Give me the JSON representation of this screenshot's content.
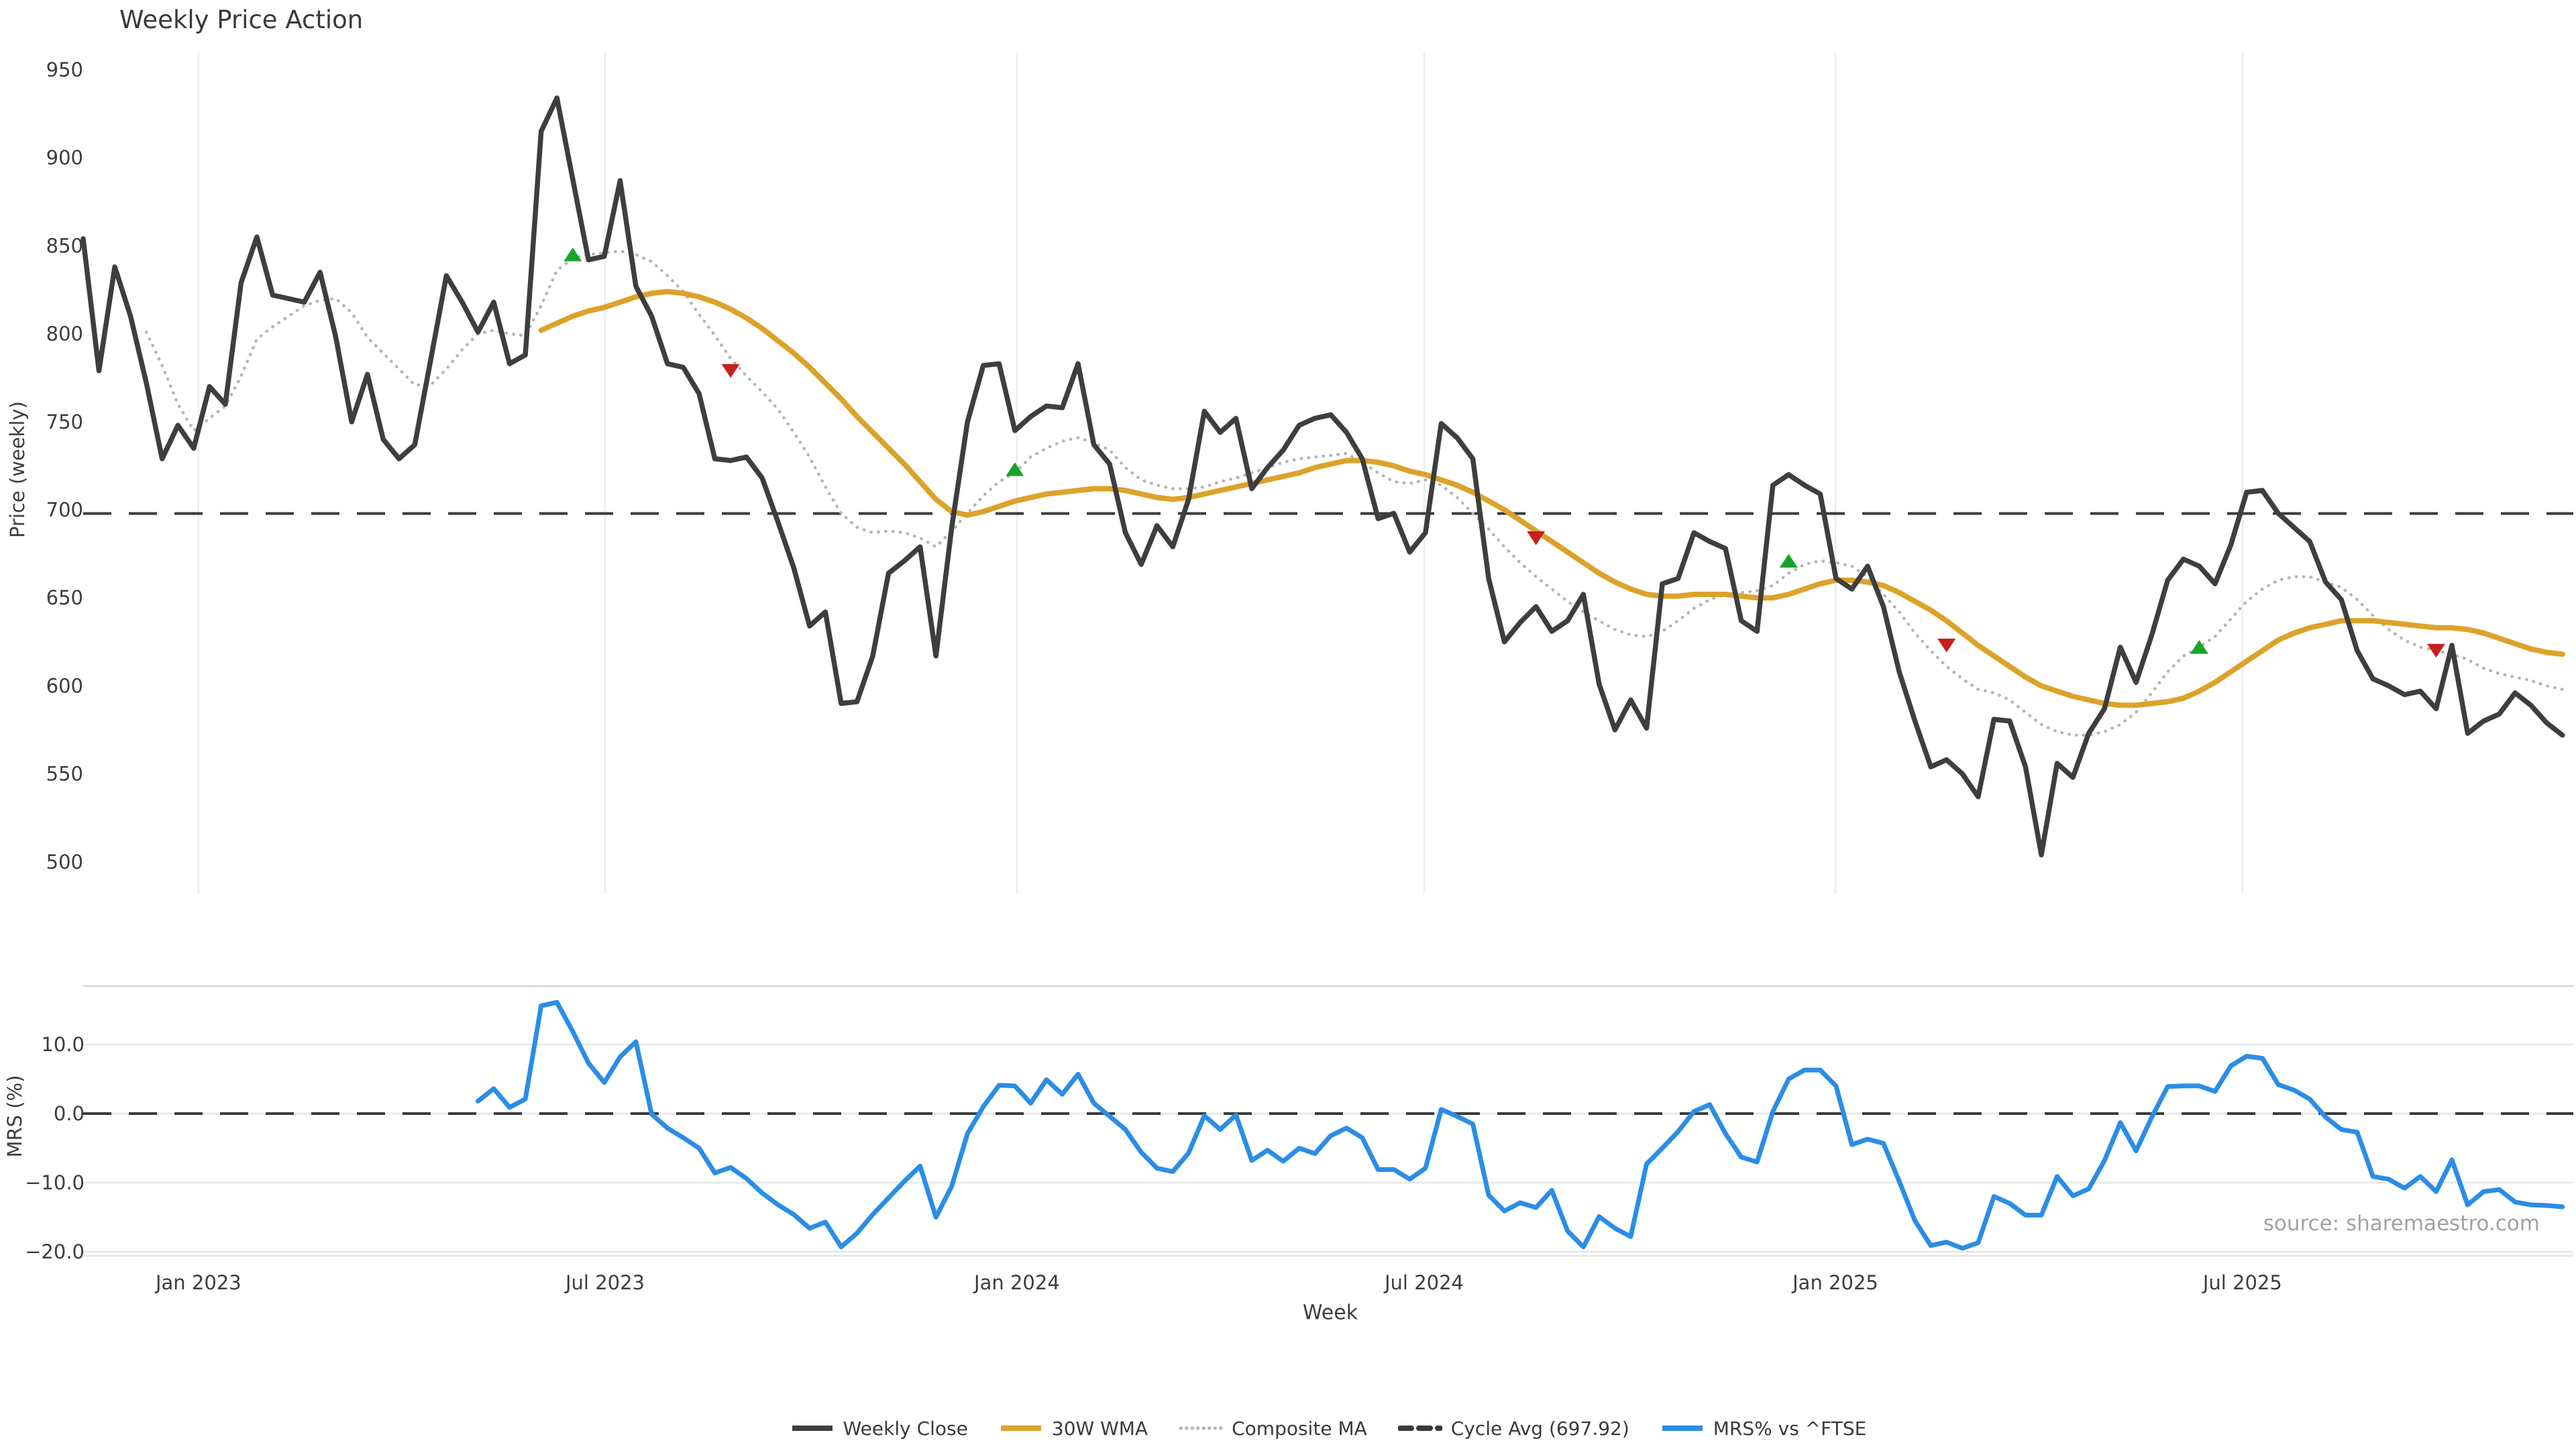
{
  "title": "Weekly Price Action",
  "source": "source: sharemaestro.com",
  "colors": {
    "weekly_close": "#3e3e3e",
    "wma": "#dca32a",
    "composite": "#b5b5b5",
    "cycle_avg": "#3a3a3a",
    "mrs": "#2b8de6",
    "buy_marker": "#17a42a",
    "sell_marker": "#c81e1e",
    "gridline": "#ededed",
    "mrs_gridline": "#e6e6e6",
    "tick_text": "#3d3d3d"
  },
  "chart_data": [
    {
      "type": "line",
      "id": "price",
      "title": "Weekly Price Action",
      "ylabel": "Price (weekly)",
      "ylim": [
        482,
        961
      ],
      "yticks": [
        500,
        550,
        600,
        650,
        700,
        750,
        800,
        850,
        900,
        950
      ],
      "x_axis": "weekly dates Nov 2022 - Nov 2025 (week index 0-157)",
      "x_ticks": [
        {
          "week": 7.3,
          "label": "Jan 2023"
        },
        {
          "week": 33.05,
          "label": "Jul 2023"
        },
        {
          "week": 59.13,
          "label": "Jan 2024"
        },
        {
          "week": 84.92,
          "label": "Jul 2024"
        },
        {
          "week": 110.96,
          "label": "Jan 2025"
        },
        {
          "week": 136.74,
          "label": "Jul 2025"
        }
      ],
      "cycle_avg": 697.92,
      "grid": "vertical-only",
      "series": [
        {
          "name": "Weekly Close",
          "style": "solid",
          "color": "#3e3e3e",
          "width": 7.5,
          "start_week": 0,
          "values": [
            854,
            779,
            838,
            810,
            772,
            729,
            748,
            735,
            770,
            760,
            829,
            855,
            822,
            820,
            818,
            835,
            798,
            750,
            777,
            740,
            729,
            737,
            785,
            833,
            818,
            801,
            818,
            783,
            788,
            915,
            934,
            888,
            842,
            844,
            887,
            827,
            810,
            783,
            781,
            766,
            729,
            728,
            730,
            718,
            693,
            667,
            634,
            642,
            590,
            591,
            617,
            664,
            671,
            679,
            617,
            690,
            750,
            782,
            783,
            745,
            753,
            759,
            758,
            783,
            737,
            726,
            687,
            669,
            691,
            679,
            706,
            756,
            744,
            752,
            712,
            724,
            734,
            748,
            752,
            754,
            744,
            729,
            695,
            698,
            676,
            687,
            749,
            741,
            729,
            661,
            625,
            636,
            645,
            631,
            637,
            652,
            601,
            575,
            592,
            576,
            658,
            661,
            687,
            682,
            678,
            637,
            631,
            714,
            720,
            714,
            709,
            661,
            655,
            668,
            645,
            608,
            580,
            554,
            558,
            550,
            537,
            581,
            580,
            554,
            504,
            556,
            548,
            573,
            587,
            622,
            602,
            629,
            660,
            672,
            668,
            658,
            680,
            710,
            711,
            698,
            690,
            682,
            659,
            649,
            620,
            604,
            600,
            595,
            597,
            587,
            623,
            573,
            580,
            584,
            596,
            589,
            579,
            572
          ]
        },
        {
          "name": "30W WMA",
          "style": "solid",
          "color": "#dca32a",
          "width": 8,
          "start_week": 29,
          "values": [
            802,
            806,
            810,
            813,
            815,
            818,
            821,
            823,
            824,
            823,
            821,
            818,
            814,
            809,
            803,
            796,
            789,
            781,
            772,
            763,
            753,
            744,
            735,
            726,
            716,
            706,
            699,
            697,
            699,
            702,
            705,
            707,
            709,
            710,
            711,
            712,
            712,
            711,
            709,
            707,
            706,
            707,
            709,
            711,
            713,
            715,
            717,
            719,
            721,
            724,
            726,
            728,
            728,
            727,
            725,
            722,
            720,
            717,
            714,
            710,
            705,
            700,
            694,
            688,
            682,
            676,
            670,
            664,
            659,
            655,
            652,
            651,
            651,
            652,
            652,
            652,
            651,
            650,
            650,
            652,
            655,
            658,
            660,
            660,
            659,
            657,
            653,
            648,
            643,
            637,
            630,
            623,
            617,
            611,
            605,
            600,
            597,
            594,
            592,
            590,
            589,
            589,
            590,
            591,
            593,
            597,
            602,
            608,
            614,
            620,
            626,
            630,
            633,
            635,
            637,
            637,
            637,
            636,
            635,
            634,
            633,
            633,
            632,
            630,
            627,
            624,
            621,
            619,
            618
          ]
        },
        {
          "name": "Composite MA",
          "style": "dotted",
          "color": "#b5b5b5",
          "width": 4.5,
          "start_week": 4,
          "values": [
            801,
            782,
            760,
            745,
            752,
            759,
            776,
            797,
            804,
            810,
            816,
            819,
            820,
            812,
            798,
            789,
            780,
            771,
            771,
            780,
            791,
            800,
            802,
            800,
            799,
            816,
            836,
            843,
            845,
            846,
            847,
            845,
            841,
            833,
            824,
            811,
            799,
            786,
            776,
            767,
            757,
            744,
            730,
            713,
            698,
            690,
            687,
            688,
            687,
            684,
            679,
            688,
            698,
            708,
            716,
            721,
            730,
            735,
            739,
            741,
            738,
            734,
            724,
            717,
            714,
            712,
            712,
            713,
            716,
            718,
            721,
            724,
            727,
            729,
            730,
            731,
            732,
            727,
            721,
            716,
            715,
            717,
            714,
            707,
            698,
            689,
            679,
            670,
            662,
            655,
            648,
            642,
            637,
            632,
            629,
            628,
            631,
            637,
            644,
            649,
            652,
            653,
            654,
            657,
            664,
            669,
            671,
            670,
            668,
            662,
            652,
            642,
            630,
            620,
            611,
            604,
            598,
            596,
            592,
            585,
            578,
            574,
            572,
            572,
            574,
            578,
            585,
            596,
            608,
            617,
            622,
            628,
            638,
            648,
            655,
            660,
            662,
            662,
            659,
            656,
            649,
            640,
            632,
            626,
            622,
            620,
            618,
            615,
            610,
            607,
            605,
            603,
            600,
            598
          ]
        }
      ],
      "markers": {
        "buy": {
          "shape": "triangle-up",
          "color": "#17a42a",
          "points": [
            {
              "week": 31,
              "value": 845
            },
            {
              "week": 59,
              "value": 723
            },
            {
              "week": 108,
              "value": 671
            },
            {
              "week": 134,
              "value": 622
            }
          ]
        },
        "sell": {
          "shape": "triangle-down",
          "color": "#c81e1e",
          "points": [
            {
              "week": 41,
              "value": 779
            },
            {
              "week": 92,
              "value": 684
            },
            {
              "week": 118,
              "value": 623
            },
            {
              "week": 149,
              "value": 620
            }
          ]
        }
      }
    },
    {
      "type": "line",
      "id": "mrs",
      "ylabel": "MRS (%)",
      "xlabel": "Week",
      "ylim": [
        -20.6,
        18.4
      ],
      "yticks": [
        {
          "v": 10,
          "label": "10.0"
        },
        {
          "v": 0,
          "label": "0.0"
        },
        {
          "v": -10,
          "label": "−10.0"
        },
        {
          "v": -20,
          "label": "−20.0"
        }
      ],
      "zero_line": 0,
      "grid": "horizontal-only",
      "series": [
        {
          "name": "MRS% vs ^FTSE",
          "style": "solid",
          "color": "#2b8de6",
          "width": 7,
          "start_week": 25,
          "values": [
            1.8,
            3.6,
            0.9,
            2.1,
            15.6,
            16.1,
            11.9,
            7.3,
            4.5,
            8.2,
            10.4,
            -0.1,
            -2.1,
            -3.5,
            -5.0,
            -8.6,
            -7.8,
            -9.4,
            -11.5,
            -13.2,
            -14.6,
            -16.6,
            -15.7,
            -19.3,
            -17.3,
            -14.6,
            -12.2,
            -9.8,
            -7.6,
            -15.0,
            -10.5,
            -2.9,
            1.0,
            4.1,
            4.0,
            1.5,
            4.9,
            2.8,
            5.7,
            1.5,
            -0.4,
            -2.3,
            -5.6,
            -7.9,
            -8.4,
            -5.7,
            -0.3,
            -2.3,
            -0.2,
            -6.8,
            -5.3,
            -6.9,
            -5.0,
            -5.8,
            -3.2,
            -2.1,
            -3.5,
            -8.1,
            -8.1,
            -9.5,
            -7.9,
            0.6,
            -0.4,
            -1.5,
            -11.8,
            -14.1,
            -12.9,
            -13.6,
            -11.1,
            -17.0,
            -19.3,
            -14.9,
            -16.6,
            -17.8,
            -7.3,
            -5.0,
            -2.6,
            0.3,
            1.3,
            -2.9,
            -6.3,
            -7.0,
            0.3,
            5.0,
            6.3,
            6.3,
            4.0,
            -4.5,
            -3.7,
            -4.3,
            -9.8,
            -15.5,
            -19.1,
            -18.6,
            -19.5,
            -18.7,
            -12.0,
            -13.0,
            -14.7,
            -14.7,
            -9.1,
            -11.9,
            -10.9,
            -6.8,
            -1.3,
            -5.4,
            -0.5,
            3.9,
            4.0,
            4.0,
            3.2,
            6.9,
            8.3,
            8.0,
            4.2,
            3.4,
            2.1,
            -0.5,
            -2.3,
            -2.7,
            -9.1,
            -9.5,
            -10.8,
            -9.1,
            -11.3,
            -6.7,
            -13.2,
            -11.3,
            -11.0,
            -12.8,
            -13.2,
            -13.3,
            -13.5
          ]
        }
      ]
    }
  ],
  "legend": {
    "items": [
      {
        "label": "Weekly Close",
        "style": "solid",
        "color": "#3e3e3e"
      },
      {
        "label": "30W WMA",
        "style": "solid",
        "color": "#dca32a"
      },
      {
        "label": "Composite MA",
        "style": "dotted",
        "color": "#b5b5b5"
      },
      {
        "label": "Cycle Avg (697.92)",
        "style": "dashed",
        "color": "#3a3a3a"
      },
      {
        "label": "MRS% vs ^FTSE",
        "style": "solid",
        "color": "#2b8de6"
      }
    ]
  }
}
